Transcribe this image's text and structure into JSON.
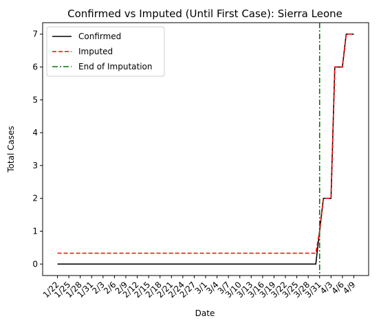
{
  "chart_data": {
    "type": "line",
    "title": "Confirmed vs Imputed (Until First Case): Sierra Leone",
    "xlabel": "Date",
    "ylabel": "Total Cases",
    "ylim": [
      -0.35,
      7.35
    ],
    "yticks": [
      0,
      1,
      2,
      3,
      4,
      5,
      6,
      7
    ],
    "x": [
      "1/22",
      "1/23",
      "1/24",
      "1/25",
      "1/26",
      "1/27",
      "1/28",
      "1/29",
      "1/30",
      "1/31",
      "2/1",
      "2/2",
      "2/3",
      "2/4",
      "2/5",
      "2/6",
      "2/7",
      "2/8",
      "2/9",
      "2/10",
      "2/11",
      "2/12",
      "2/13",
      "2/14",
      "2/15",
      "2/16",
      "2/17",
      "2/18",
      "2/19",
      "2/20",
      "2/21",
      "2/22",
      "2/23",
      "2/24",
      "2/25",
      "2/26",
      "2/27",
      "2/28",
      "2/29",
      "3/1",
      "3/2",
      "3/3",
      "3/4",
      "3/5",
      "3/6",
      "3/7",
      "3/8",
      "3/9",
      "3/10",
      "3/11",
      "3/12",
      "3/13",
      "3/14",
      "3/15",
      "3/16",
      "3/17",
      "3/18",
      "3/19",
      "3/20",
      "3/21",
      "3/22",
      "3/23",
      "3/24",
      "3/25",
      "3/26",
      "3/27",
      "3/28",
      "3/29",
      "3/30",
      "3/31",
      "4/1",
      "4/2",
      "4/3",
      "4/4",
      "4/5",
      "4/6",
      "4/7",
      "4/8",
      "4/9"
    ],
    "xtick_labels": [
      "1/22",
      "1/25",
      "1/28",
      "1/31",
      "2/3",
      "2/6",
      "2/9",
      "2/12",
      "2/15",
      "2/18",
      "2/21",
      "2/24",
      "2/27",
      "3/1",
      "3/4",
      "3/7",
      "3/10",
      "3/13",
      "3/16",
      "3/19",
      "3/22",
      "3/25",
      "3/28",
      "3/31",
      "4/3",
      "4/6",
      "4/9"
    ],
    "series": [
      {
        "name": "Confirmed",
        "color": "#000000",
        "style": "solid",
        "values": [
          0,
          0,
          0,
          0,
          0,
          0,
          0,
          0,
          0,
          0,
          0,
          0,
          0,
          0,
          0,
          0,
          0,
          0,
          0,
          0,
          0,
          0,
          0,
          0,
          0,
          0,
          0,
          0,
          0,
          0,
          0,
          0,
          0,
          0,
          0,
          0,
          0,
          0,
          0,
          0,
          0,
          0,
          0,
          0,
          0,
          0,
          0,
          0,
          0,
          0,
          0,
          0,
          0,
          0,
          0,
          0,
          0,
          0,
          0,
          0,
          0,
          0,
          0,
          0,
          0,
          0,
          0,
          0,
          0,
          1,
          2,
          2,
          2,
          6,
          6,
          6,
          7,
          7,
          7
        ]
      },
      {
        "name": "Imputed",
        "color": "#ff0000",
        "style": "dashed",
        "values": [
          0.33,
          0.33,
          0.33,
          0.33,
          0.33,
          0.33,
          0.33,
          0.33,
          0.33,
          0.33,
          0.33,
          0.33,
          0.33,
          0.33,
          0.33,
          0.33,
          0.33,
          0.33,
          0.33,
          0.33,
          0.33,
          0.33,
          0.33,
          0.33,
          0.33,
          0.33,
          0.33,
          0.33,
          0.33,
          0.33,
          0.33,
          0.33,
          0.33,
          0.33,
          0.33,
          0.33,
          0.33,
          0.33,
          0.33,
          0.33,
          0.33,
          0.33,
          0.33,
          0.33,
          0.33,
          0.33,
          0.33,
          0.33,
          0.33,
          0.33,
          0.33,
          0.33,
          0.33,
          0.33,
          0.33,
          0.33,
          0.33,
          0.33,
          0.33,
          0.33,
          0.33,
          0.33,
          0.33,
          0.33,
          0.33,
          0.33,
          0.33,
          0.33,
          0.33,
          1,
          2,
          2,
          2,
          6,
          6,
          6,
          7,
          7,
          7
        ]
      }
    ],
    "vline": {
      "name": "End of Imputation",
      "x": "3/31",
      "color": "#007700",
      "style": "dashdot"
    },
    "legend": {
      "position": "top-left"
    },
    "grid": false
  }
}
